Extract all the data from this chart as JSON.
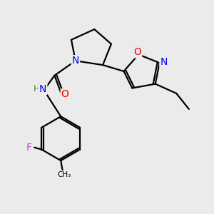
{
  "bg_color": "#ebebeb",
  "bond_color": "#000000",
  "bond_lw": 1.6,
  "atom_colors": {
    "N": "#0000ee",
    "O": "#ee0000",
    "F": "#cc44cc",
    "C": "#000000",
    "H": "#3a8a3a"
  },
  "font_size": 9.5
}
